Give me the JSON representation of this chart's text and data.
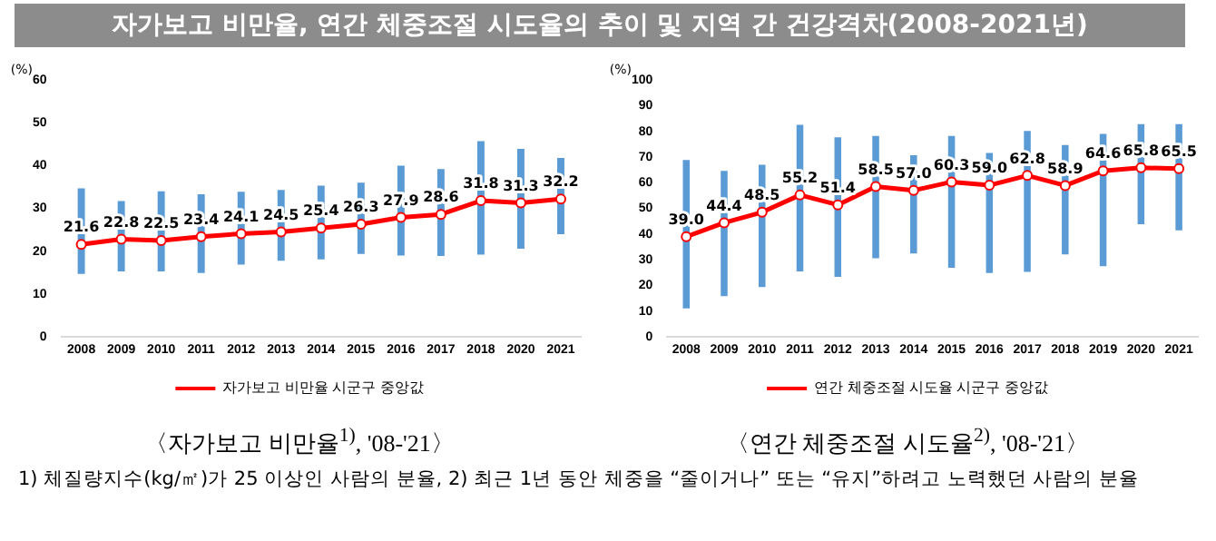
{
  "chart_data": [
    {
      "type": "bar",
      "title": "자가보고 비만율, 연간 체중조절 시도율의 추이 및 지역 간 건강격차(2008-2021년)",
      "ylabel": "(%)",
      "categories": [
        "2008",
        "2009",
        "2010",
        "2011",
        "2012",
        "2013",
        "2014",
        "2015",
        "2016",
        "2017",
        "2018",
        "2020",
        "2021"
      ],
      "ylim": [
        0,
        60
      ],
      "yticks": [
        0,
        10,
        20,
        30,
        40,
        50,
        60
      ],
      "grid": false,
      "legend": "bottom",
      "series": [
        {
          "color": "#5b9bd5",
          "base": [
            14.7,
            15.3,
            15.3,
            14.9,
            16.9,
            17.8,
            18.1,
            19.4,
            19.0,
            18.9,
            19.2,
            20.6,
            24.0
          ],
          "values": [
            20.0,
            16.4,
            18.7,
            18.4,
            17.0,
            16.5,
            17.2,
            16.6,
            21.0,
            20.3,
            26.5,
            23.3,
            17.8
          ]
        },
        {
          "type": "line",
          "name": "자가보고 비만율 시군구 중앙값",
          "color": "#ff0000",
          "marker": "circle",
          "values": [
            21.6,
            22.8,
            22.5,
            23.4,
            24.1,
            24.5,
            25.4,
            26.3,
            27.9,
            28.6,
            31.8,
            31.3,
            32.2
          ],
          "value_labels": [
            "21.6",
            "22.8",
            "22.5",
            "23.4",
            "24.1",
            "24.5",
            "25.4",
            "26.3",
            "27.9",
            "28.6",
            "31.8",
            "31.3",
            "32.2"
          ]
        }
      ],
      "annotations": [
        "〈자가보고 비만율$^{1)}$, '08-'21〉",
        "1) 체질량지수(kg/㎡)가 25 이상인 사람의 분율, 2) 최근 1년 동안 체중을 “줄이거나” 또는 “유지”하려고 노력했던 사람의 분율"
      ]
    },
    {
      "type": "bar",
      "ylabel": "(%)",
      "categories": [
        "2008",
        "2009",
        "2010",
        "2011",
        "2012",
        "2013",
        "2014",
        "2015",
        "2016",
        "2017",
        "2018",
        "2019",
        "2020",
        "2021"
      ],
      "ylim": [
        0,
        100
      ],
      "yticks": [
        0,
        10,
        20,
        30,
        40,
        50,
        60,
        70,
        80,
        90,
        100
      ],
      "grid": false,
      "legend": "bottom",
      "series": [
        {
          "color": "#5b9bd5",
          "base": [
            11.1,
            15.9,
            19.4,
            25.5,
            23.4,
            30.6,
            32.5,
            26.9,
            24.9,
            25.3,
            32.1,
            27.5,
            43.9,
            41.5
          ],
          "values": [
            57.7,
            48.7,
            47.6,
            57.0,
            54.3,
            47.6,
            38.2,
            51.3,
            46.7,
            54.8,
            42.6,
            51.5,
            38.9,
            41.3
          ]
        },
        {
          "type": "line",
          "name": "연간 체중조절 시도율 시군구 중앙값",
          "color": "#ff0000",
          "marker": "circle",
          "values": [
            39.0,
            44.4,
            48.5,
            55.2,
            51.4,
            58.5,
            57.0,
            60.3,
            59.0,
            62.8,
            58.9,
            64.6,
            65.8,
            65.5
          ],
          "value_labels": [
            "39.0",
            "44.4",
            "48.5",
            "55.2",
            "51.4",
            "58.5",
            "57.0",
            "60.3",
            "59.0",
            "62.8",
            "58.9",
            "64.6",
            "65.8",
            "65.5"
          ]
        }
      ],
      "annotations": [
        "〈연간 체중조절 시도율$^{2)}$, '08-'21〉"
      ]
    }
  ]
}
